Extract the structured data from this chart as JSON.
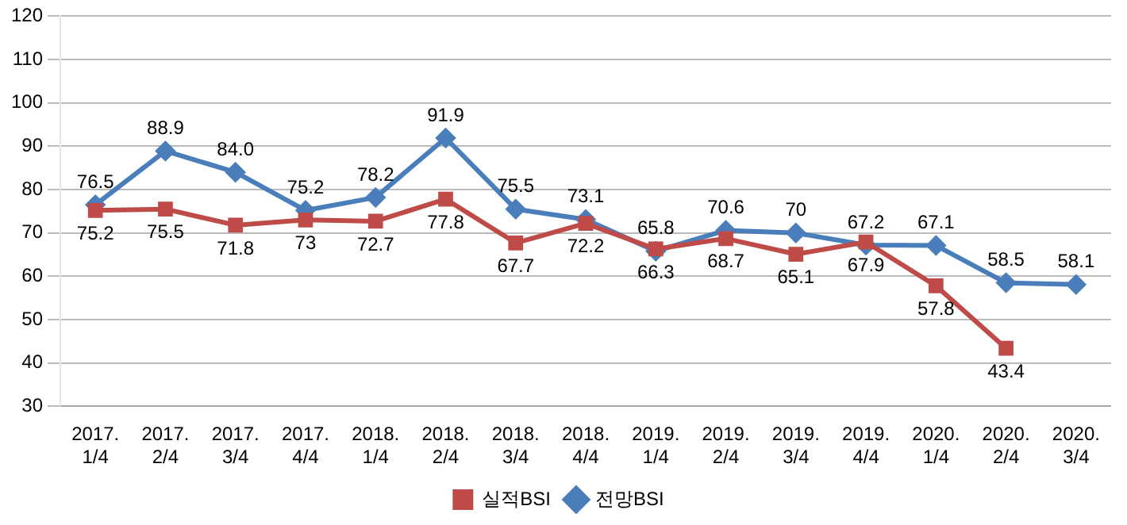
{
  "chart_data": {
    "type": "line",
    "categories": [
      "2017. 1/4",
      "2017. 2/4",
      "2017. 3/4",
      "2017. 4/4",
      "2018. 1/4",
      "2018. 2/4",
      "2018. 3/4",
      "2018. 4/4",
      "2019. 1/4",
      "2019. 2/4",
      "2019. 3/4",
      "2019. 4/4",
      "2020. 1/4",
      "2020. 2/4",
      "2020. 3/4"
    ],
    "series": [
      {
        "name": "실적BSI",
        "color": "#be4b48",
        "marker": "square",
        "values": [
          75.2,
          75.5,
          71.8,
          73,
          72.7,
          77.8,
          67.7,
          72.2,
          66.3,
          68.7,
          65.1,
          67.9,
          57.8,
          43.4,
          null
        ],
        "value_labels": [
          "75.2",
          "75.5",
          "71.8",
          "73",
          "72.7",
          "77.8",
          "67.7",
          "72.2",
          "66.3",
          "68.7",
          "65.1",
          "67.9",
          "57.8",
          "43.4",
          null
        ]
      },
      {
        "name": "전망BSI",
        "color": "#4a7ebb",
        "marker": "diamond",
        "values": [
          76.5,
          88.9,
          84.0,
          75.2,
          78.2,
          91.9,
          75.5,
          73.1,
          65.8,
          70.6,
          70,
          67.2,
          67.1,
          58.5,
          58.1
        ],
        "value_labels": [
          "76.5",
          "88.9",
          "84.0",
          "75.2",
          "78.2",
          "91.9",
          "75.5",
          "73.1",
          "65.8",
          "70.6",
          "70",
          "67.2",
          "67.1",
          "58.5",
          "58.1"
        ]
      }
    ],
    "ylim": [
      30,
      120
    ],
    "yticks": [
      30,
      40,
      50,
      60,
      70,
      80,
      90,
      100,
      110,
      120
    ],
    "grid": "y",
    "legend": "bottom",
    "line_style": "solid"
  }
}
